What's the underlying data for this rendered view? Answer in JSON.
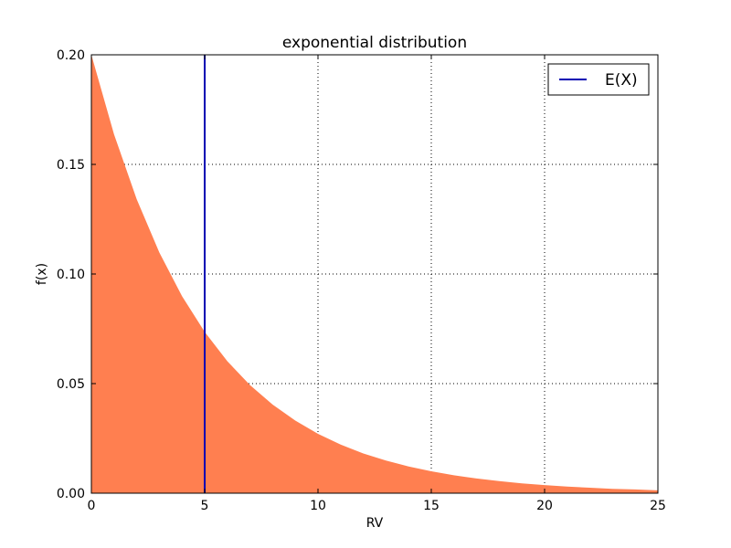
{
  "chart_data": {
    "type": "area",
    "title": "exponential distribution",
    "xlabel": "RV",
    "ylabel": "f(x)",
    "xlim": [
      0,
      25
    ],
    "ylim": [
      0,
      0.2
    ],
    "x_ticks": [
      0,
      5,
      10,
      15,
      20,
      25
    ],
    "y_ticks": [
      0.0,
      0.05,
      0.1,
      0.15,
      0.2
    ],
    "x_tick_labels": [
      "0",
      "5",
      "10",
      "15",
      "20",
      "25"
    ],
    "y_tick_labels": [
      "0.00",
      "0.05",
      "0.10",
      "0.15",
      "0.20"
    ],
    "grid": true,
    "legend_position": "top-right",
    "series": [
      {
        "kind": "area",
        "color": "#ff7f50",
        "x": [
          0,
          1,
          2,
          3,
          4,
          5,
          6,
          7,
          8,
          9,
          10,
          11,
          12,
          13,
          14,
          15,
          16,
          17,
          18,
          19,
          20,
          21,
          22,
          23,
          24,
          25
        ],
        "y": [
          0.2,
          0.1637,
          0.1341,
          0.1098,
          0.0899,
          0.0736,
          0.0602,
          0.0493,
          0.0404,
          0.0331,
          0.0271,
          0.0222,
          0.0181,
          0.0149,
          0.0122,
          0.01,
          0.0082,
          0.0067,
          0.0055,
          0.0045,
          0.0037,
          0.003,
          0.0025,
          0.002,
          0.0017,
          0.0013
        ]
      },
      {
        "kind": "vline",
        "name": "E(X)",
        "color": "#0000b3",
        "x": 5
      }
    ]
  }
}
